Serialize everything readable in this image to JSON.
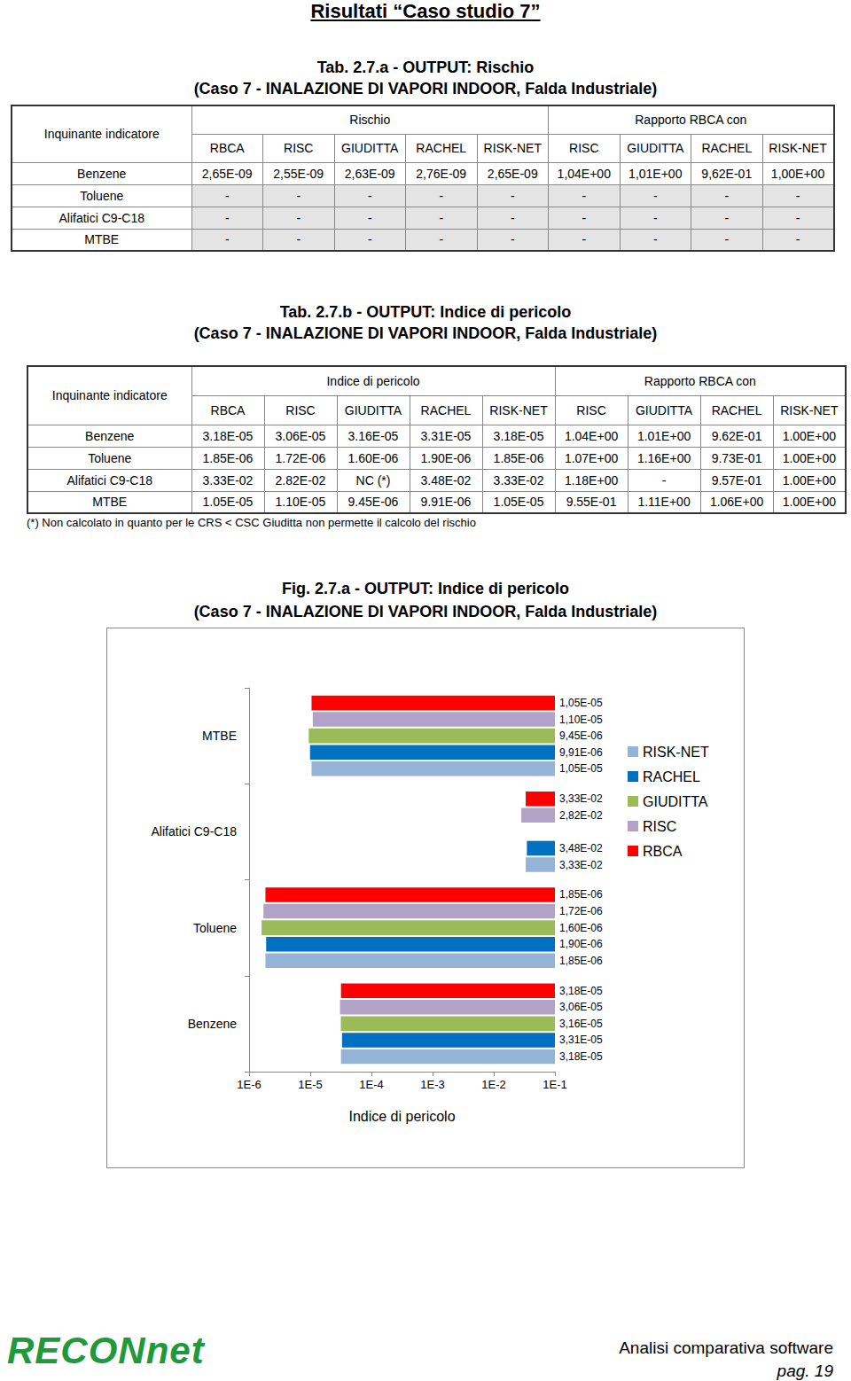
{
  "page": {
    "title": "Risultati “Caso studio 7”"
  },
  "table_a": {
    "title": "Tab. 2.7.a - OUTPUT: Rischio",
    "subtitle": "(Caso 7 - INALAZIONE DI VAPORI INDOOR, Falda Industriale)",
    "corner": "Inquinante indicatore",
    "groups": [
      {
        "label": "Rischio",
        "columns": [
          "RBCA",
          "RISC",
          "GIUDITTA",
          "RACHEL",
          "RISK-NET"
        ]
      },
      {
        "label": "Rapporto RBCA con",
        "columns": [
          "RISC",
          "GIUDITTA",
          "RACHEL",
          "RISK-NET"
        ]
      }
    ],
    "rows": [
      [
        "Benzene",
        "2,65E-09",
        "2,55E-09",
        "2,63E-09",
        "2,76E-09",
        "2,65E-09",
        "1,04E+00",
        "1,01E+00",
        "9,62E-01",
        "1,00E+00"
      ],
      [
        "Toluene",
        "-",
        "-",
        "-",
        "-",
        "-",
        "-",
        "-",
        "-",
        "-"
      ],
      [
        "Alifatici C9-C18",
        "-",
        "-",
        "-",
        "-",
        "-",
        "-",
        "-",
        "-",
        "-"
      ],
      [
        "MTBE",
        "-",
        "-",
        "-",
        "-",
        "-",
        "-",
        "-",
        "-",
        "-"
      ]
    ]
  },
  "table_b": {
    "title": "Tab. 2.7.b - OUTPUT: Indice di pericolo",
    "subtitle": "(Caso 7 - INALAZIONE DI VAPORI INDOOR, Falda Industriale)",
    "corner": "Inquinante indicatore",
    "groups": [
      {
        "label": "Indice di pericolo",
        "columns": [
          "RBCA",
          "RISC",
          "GIUDITTA",
          "RACHEL",
          "RISK-NET"
        ]
      },
      {
        "label": "Rapporto RBCA con",
        "columns": [
          "RISC",
          "GIUDITTA",
          "RACHEL",
          "RISK-NET"
        ]
      }
    ],
    "rows": [
      [
        "Benzene",
        "3.18E-05",
        "3.06E-05",
        "3.16E-05",
        "3.31E-05",
        "3.18E-05",
        "1.04E+00",
        "1.01E+00",
        "9.62E-01",
        "1.00E+00"
      ],
      [
        "Toluene",
        "1.85E-06",
        "1.72E-06",
        "1.60E-06",
        "1.90E-06",
        "1.85E-06",
        "1.07E+00",
        "1.16E+00",
        "9.73E-01",
        "1.00E+00"
      ],
      [
        "Alifatici C9-C18",
        "3.33E-02",
        "2.82E-02",
        "NC (*)",
        "3.48E-02",
        "3.33E-02",
        "1.18E+00",
        "-",
        "9.57E-01",
        "1.00E+00"
      ],
      [
        "MTBE",
        "1.05E-05",
        "1.10E-05",
        "9.45E-06",
        "9.91E-06",
        "1.05E-05",
        "9.55E-01",
        "1.11E+00",
        "1.06E+00",
        "1.00E+00"
      ]
    ],
    "note": "(*) Non calcolato in quanto per le  CRS < CSC Giuditta non permette il calcolo del rischio"
  },
  "chart_data": {
    "type": "bar",
    "title": "Fig. 2.7.a - OUTPUT: Indice di pericolo",
    "subtitle": "(Caso 7 - INALAZIONE DI VAPORI INDOOR, Falda Industriale)",
    "orientation": "horizontal",
    "log": "x",
    "grid": false,
    "legend": "right",
    "data_labels": true,
    "x_label": "Indice di pericolo",
    "categories": [
      "Benzene",
      "Toluene",
      "Alifatici C9-C18",
      "MTBE"
    ],
    "xlim": [
      1e-06,
      0.1
    ],
    "xticks": [
      {
        "value": 1e-06,
        "label": "1E-6"
      },
      {
        "value": 1e-05,
        "label": "1E-5"
      },
      {
        "value": 0.0001,
        "label": "1E-4"
      },
      {
        "value": 0.001,
        "label": "1E-3"
      },
      {
        "value": 0.01,
        "label": "1E-2"
      },
      {
        "value": 0.1,
        "label": "1E-1"
      }
    ],
    "series": [
      {
        "name": "RISK-NET",
        "color": "#95b3d7",
        "values": [
          3.18e-05,
          1.85e-06,
          0.0333,
          1.05e-05
        ],
        "value_labels": [
          "3,18E-05",
          "1,85E-06",
          "3,33E-02",
          "1,05E-05"
        ]
      },
      {
        "name": "RACHEL",
        "color": "#0070c0",
        "values": [
          3.31e-05,
          1.9e-06,
          0.0348,
          9.91e-06
        ],
        "value_labels": [
          "3,31E-05",
          "1,90E-06",
          "3,48E-02",
          "9,91E-06"
        ]
      },
      {
        "name": "GIUDITTA",
        "color": "#9bbb59",
        "values": [
          3.16e-05,
          1.6e-06,
          null,
          9.45e-06
        ],
        "value_labels": [
          "3,16E-05",
          "1,60E-06",
          null,
          "9,45E-06"
        ]
      },
      {
        "name": "RISC",
        "color": "#b3a2c7",
        "values": [
          3.06e-05,
          1.72e-06,
          0.0282,
          1.1e-05
        ],
        "value_labels": [
          "3,06E-05",
          "1,72E-06",
          "2,82E-02",
          "1,10E-05"
        ]
      },
      {
        "name": "RBCA",
        "color": "#ff0000",
        "values": [
          3.18e-05,
          1.85e-06,
          0.0333,
          1.05e-05
        ],
        "value_labels": [
          "3,18E-05",
          "1,85E-06",
          "3,33E-02",
          "1,05E-05"
        ]
      }
    ]
  },
  "footer": {
    "logo": "RECONnet",
    "text": "Analisi comparativa software",
    "page": "pag. 19"
  }
}
